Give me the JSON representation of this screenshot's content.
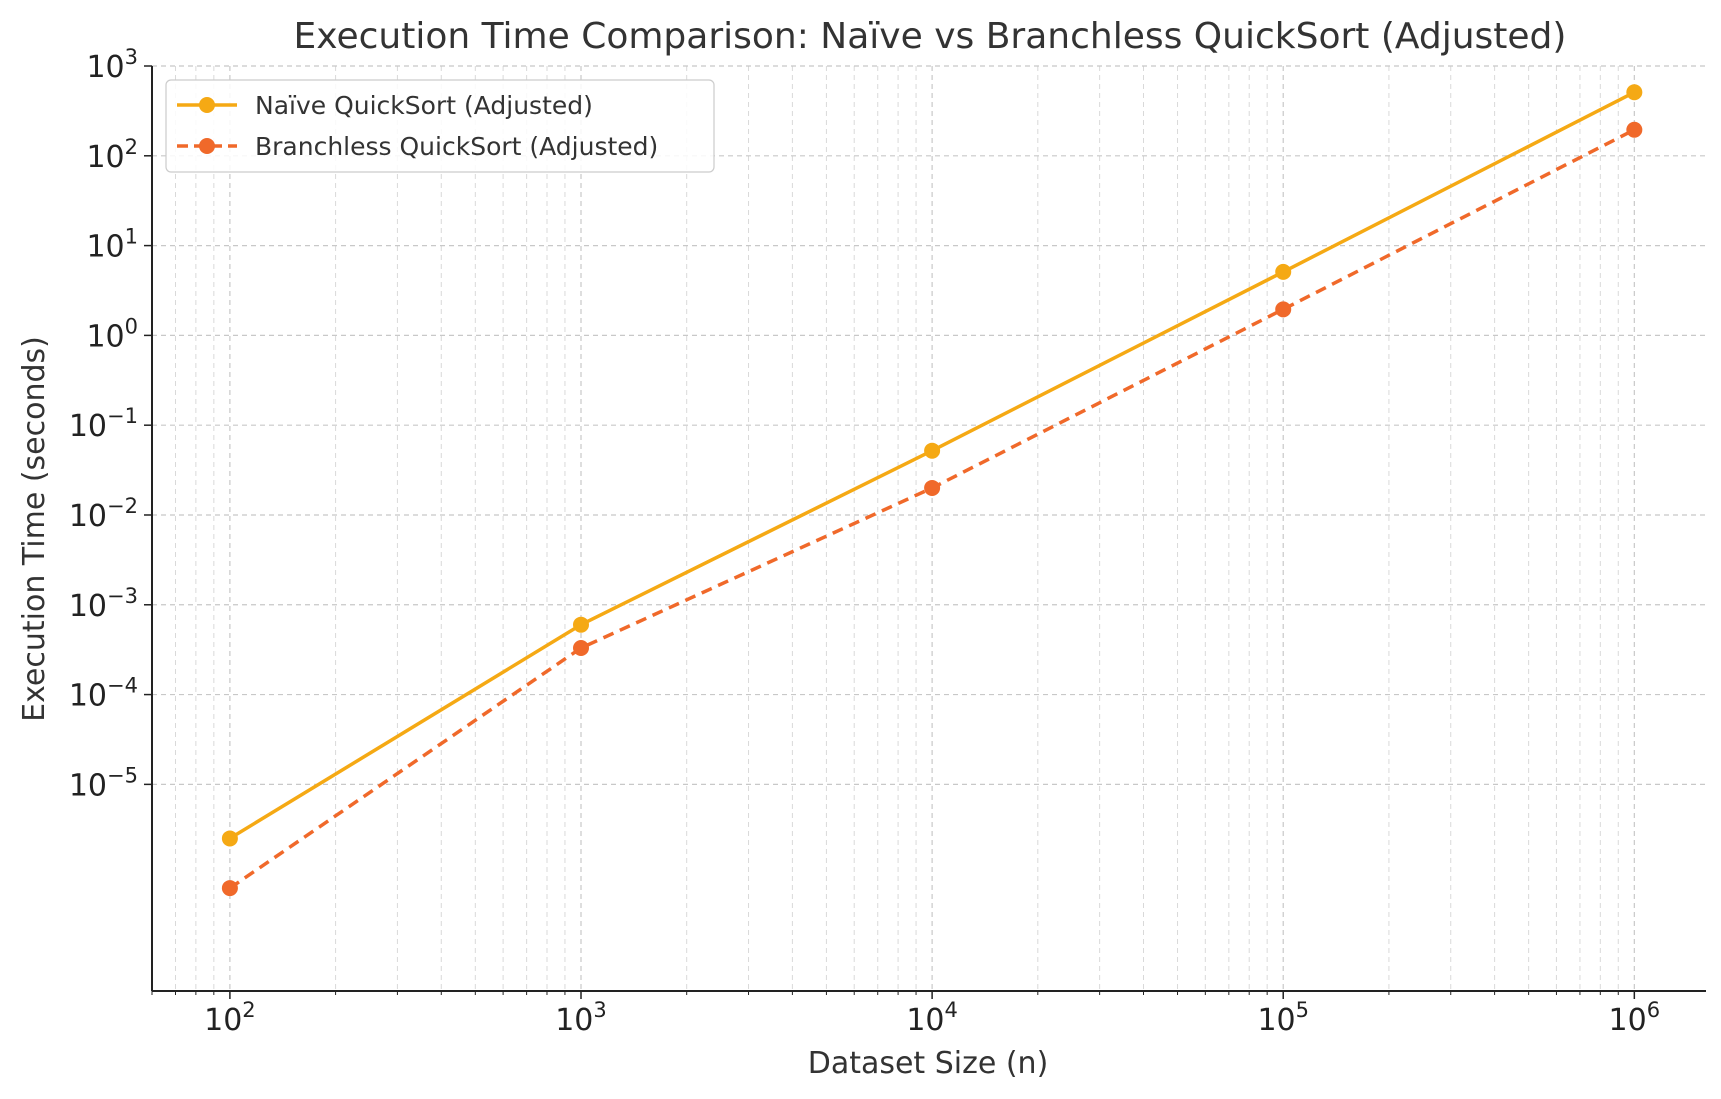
{
  "chart_data": {
    "type": "line",
    "title": "Execution Time Comparison: Naïve vs Branchless QuickSort (Adjusted)",
    "xlabel": "Dataset Size (n)",
    "ylabel": "Execution Time (seconds)",
    "x_scale": "log",
    "y_scale": "log",
    "xlim": [
      60,
      1600000
    ],
    "ylim": [
      5e-08,
      1000
    ],
    "grid": true,
    "grid_minor": true,
    "legend_position": "top-left",
    "x": [
      100,
      1000,
      10000,
      100000,
      1000000
    ],
    "x_tick_values": [
      100,
      1000,
      10000,
      100000,
      1000000
    ],
    "x_ticks": [
      {
        "base": "10",
        "exp": "2"
      },
      {
        "base": "10",
        "exp": "3"
      },
      {
        "base": "10",
        "exp": "4"
      },
      {
        "base": "10",
        "exp": "5"
      },
      {
        "base": "10",
        "exp": "6"
      }
    ],
    "y_tick_values": [
      1000,
      100,
      10,
      1,
      0.1,
      0.01,
      0.001,
      0.0001,
      1e-05
    ],
    "y_ticks": [
      {
        "base": "10",
        "exp": "3"
      },
      {
        "base": "10",
        "exp": "2"
      },
      {
        "base": "10",
        "exp": "1"
      },
      {
        "base": "10",
        "exp": "0"
      },
      {
        "base": "10",
        "exp": "−1"
      },
      {
        "base": "10",
        "exp": "−2"
      },
      {
        "base": "10",
        "exp": "−3"
      },
      {
        "base": "10",
        "exp": "−4"
      },
      {
        "base": "10",
        "exp": "−5"
      }
    ],
    "series": [
      {
        "name": "Naïve QuickSort (Adjusted)",
        "values": [
          2.5e-06,
          0.0006,
          0.052,
          5.1,
          510
        ],
        "color": "#F5A914",
        "line_style": "solid",
        "marker": "circle"
      },
      {
        "name": "Branchless QuickSort (Adjusted)",
        "values": [
          7e-07,
          0.00033,
          0.02,
          1.95,
          195
        ],
        "color": "#F0692A",
        "line_style": "dashed",
        "marker": "circle"
      }
    ]
  }
}
